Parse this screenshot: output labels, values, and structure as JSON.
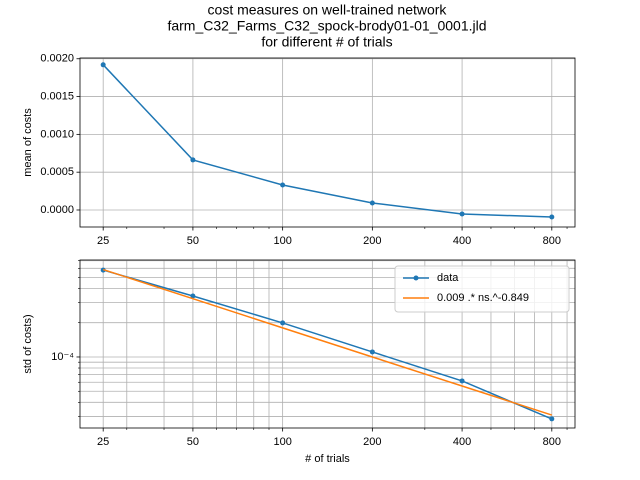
{
  "title": [
    "cost measures on well-trained network",
    "farm_C32_Farms_C32_spock-brody01-01_0001.jld",
    "for different # of trials"
  ],
  "chart_data": [
    {
      "type": "line",
      "ylabel": "mean of costs",
      "xlog": true,
      "ylog": false,
      "grid": true,
      "x": [
        25,
        50,
        100,
        200,
        400,
        800
      ],
      "series": [
        {
          "name": "data",
          "color": "#1f77b4",
          "marker": true,
          "values": [
            0.00192,
            0.000662,
            0.000331,
            9.27e-05,
            -5.3e-05,
            -9.3e-05
          ]
        }
      ],
      "xlim": [
        20.9,
        957
      ],
      "ylim": [
        -0.000225,
        0.00201
      ],
      "xticks": [
        25,
        50,
        100,
        200,
        400,
        800
      ],
      "minor_xticks": [
        30,
        40,
        60,
        70,
        80,
        90,
        300,
        500,
        600,
        700,
        900
      ],
      "yticks": [
        {
          "value": 0,
          "label": "0.0000"
        },
        {
          "value": 0.0005,
          "label": "0.0005"
        },
        {
          "value": 0.001,
          "label": "0.0010"
        },
        {
          "value": 0.0015,
          "label": "0.0015"
        },
        {
          "value": 0.002,
          "label": "0.0020"
        }
      ]
    },
    {
      "type": "line",
      "xlabel": "# of trials",
      "ylabel": "std of costs)",
      "xlog": true,
      "ylog": true,
      "grid": true,
      "minor_grid": true,
      "legend": "upper right",
      "x": [
        25,
        50,
        100,
        200,
        400,
        800
      ],
      "series": [
        {
          "name": "data",
          "color": "#1f77b4",
          "marker": true,
          "values": [
            0.000579,
            0.000343,
            0.000199,
            0.0001107,
            6.16e-05,
            2.86e-05
          ]
        },
        {
          "name": "0.009 .* ns.^-0.849",
          "color": "#ff7f0e",
          "marker": false,
          "values": [
            0.000585,
            0.000325,
            0.00018,
            0.0001,
            5.56e-05,
            3.09e-05
          ]
        }
      ],
      "xlim": [
        20.9,
        957
      ],
      "ylim": [
        2.38e-05,
        0.00071
      ],
      "xticks": [
        25,
        50,
        100,
        200,
        400,
        800
      ],
      "minor_xticks": [
        30,
        40,
        60,
        70,
        80,
        90,
        300,
        500,
        600,
        700,
        900
      ],
      "yticks": [
        {
          "value": 0.0001,
          "label": "10⁻⁴"
        }
      ],
      "minor_yticks": [
        3e-05,
        4e-05,
        5e-05,
        6e-05,
        7e-05,
        8e-05,
        9e-05,
        0.0002,
        0.0003,
        0.0004,
        0.0005,
        0.0006,
        0.0007
      ]
    }
  ]
}
